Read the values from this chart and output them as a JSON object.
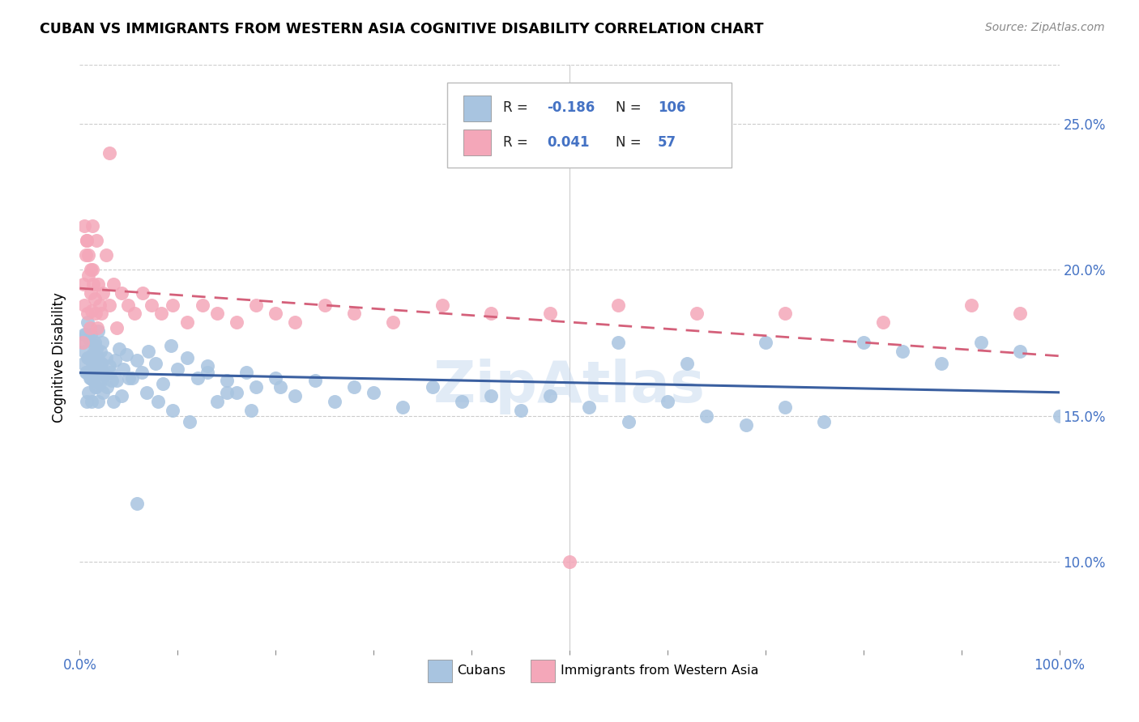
{
  "title": "CUBAN VS IMMIGRANTS FROM WESTERN ASIA COGNITIVE DISABILITY CORRELATION CHART",
  "source": "Source: ZipAtlas.com",
  "ylabel": "Cognitive Disability",
  "yticks": [
    0.1,
    0.15,
    0.2,
    0.25
  ],
  "ytick_labels": [
    "10.0%",
    "15.0%",
    "20.0%",
    "25.0%"
  ],
  "xlim": [
    0.0,
    1.0
  ],
  "ylim": [
    0.07,
    0.27
  ],
  "blue_color": "#a8c4e0",
  "pink_color": "#f4a7b9",
  "line_blue": "#3a5fa0",
  "line_pink": "#d4607a",
  "watermark_color": "#c5d8ee",
  "grid_color": "#cccccc",
  "cubans_x": [
    0.003,
    0.004,
    0.005,
    0.006,
    0.007,
    0.008,
    0.009,
    0.01,
    0.011,
    0.012,
    0.013,
    0.014,
    0.015,
    0.016,
    0.017,
    0.018,
    0.019,
    0.02,
    0.021,
    0.022,
    0.023,
    0.025,
    0.027,
    0.03,
    0.033,
    0.036,
    0.04,
    0.044,
    0.048,
    0.053,
    0.058,
    0.063,
    0.07,
    0.077,
    0.085,
    0.093,
    0.1,
    0.11,
    0.12,
    0.13,
    0.14,
    0.15,
    0.16,
    0.17,
    0.18,
    0.2,
    0.22,
    0.24,
    0.26,
    0.28,
    0.3,
    0.33,
    0.36,
    0.39,
    0.42,
    0.45,
    0.48,
    0.52,
    0.56,
    0.6,
    0.64,
    0.68,
    0.72,
    0.76,
    0.8,
    0.84,
    0.88,
    0.92,
    0.96,
    1.0,
    0.005,
    0.006,
    0.007,
    0.008,
    0.009,
    0.01,
    0.011,
    0.012,
    0.013,
    0.014,
    0.015,
    0.016,
    0.017,
    0.018,
    0.019,
    0.02,
    0.022,
    0.024,
    0.026,
    0.028,
    0.031,
    0.034,
    0.038,
    0.043,
    0.05,
    0.058,
    0.068,
    0.08,
    0.095,
    0.112,
    0.13,
    0.15,
    0.175,
    0.205,
    0.55,
    0.62,
    0.7
  ],
  "cubans_y": [
    0.175,
    0.168,
    0.172,
    0.178,
    0.165,
    0.182,
    0.17,
    0.176,
    0.163,
    0.169,
    0.171,
    0.167,
    0.174,
    0.16,
    0.173,
    0.166,
    0.179,
    0.161,
    0.172,
    0.168,
    0.175,
    0.164,
    0.17,
    0.167,
    0.162,
    0.169,
    0.173,
    0.166,
    0.171,
    0.163,
    0.169,
    0.165,
    0.172,
    0.168,
    0.161,
    0.174,
    0.166,
    0.17,
    0.163,
    0.167,
    0.155,
    0.162,
    0.158,
    0.165,
    0.16,
    0.163,
    0.157,
    0.162,
    0.155,
    0.16,
    0.158,
    0.153,
    0.16,
    0.155,
    0.157,
    0.152,
    0.157,
    0.153,
    0.148,
    0.155,
    0.15,
    0.147,
    0.153,
    0.148,
    0.175,
    0.172,
    0.168,
    0.175,
    0.172,
    0.15,
    0.178,
    0.165,
    0.155,
    0.17,
    0.158,
    0.163,
    0.178,
    0.155,
    0.168,
    0.162,
    0.175,
    0.16,
    0.165,
    0.17,
    0.155,
    0.162,
    0.168,
    0.158,
    0.164,
    0.16,
    0.165,
    0.155,
    0.162,
    0.157,
    0.163,
    0.12,
    0.158,
    0.155,
    0.152,
    0.148,
    0.165,
    0.158,
    0.152,
    0.16,
    0.175,
    0.168,
    0.175
  ],
  "wa_x": [
    0.003,
    0.004,
    0.005,
    0.006,
    0.007,
    0.008,
    0.009,
    0.01,
    0.011,
    0.012,
    0.013,
    0.014,
    0.015,
    0.016,
    0.017,
    0.018,
    0.019,
    0.02,
    0.022,
    0.024,
    0.027,
    0.03,
    0.034,
    0.038,
    0.043,
    0.049,
    0.056,
    0.064,
    0.073,
    0.083,
    0.095,
    0.11,
    0.125,
    0.14,
    0.16,
    0.18,
    0.2,
    0.22,
    0.25,
    0.28,
    0.32,
    0.37,
    0.42,
    0.48,
    0.55,
    0.63,
    0.72,
    0.82,
    0.91,
    0.96,
    0.005,
    0.007,
    0.009,
    0.011,
    0.013,
    0.03,
    0.5
  ],
  "wa_y": [
    0.175,
    0.195,
    0.188,
    0.205,
    0.21,
    0.185,
    0.198,
    0.18,
    0.192,
    0.186,
    0.2,
    0.195,
    0.19,
    0.185,
    0.21,
    0.18,
    0.195,
    0.188,
    0.185,
    0.192,
    0.205,
    0.188,
    0.195,
    0.18,
    0.192,
    0.188,
    0.185,
    0.192,
    0.188,
    0.185,
    0.188,
    0.182,
    0.188,
    0.185,
    0.182,
    0.188,
    0.185,
    0.182,
    0.188,
    0.185,
    0.182,
    0.188,
    0.185,
    0.185,
    0.188,
    0.185,
    0.185,
    0.182,
    0.188,
    0.185,
    0.215,
    0.21,
    0.205,
    0.2,
    0.215,
    0.24,
    0.1
  ]
}
